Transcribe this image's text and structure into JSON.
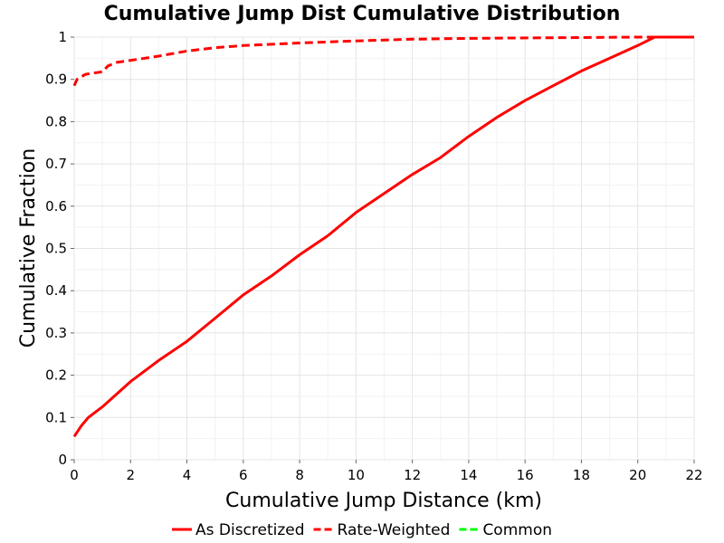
{
  "chart_data": {
    "type": "line",
    "title": "Cumulative Jump Dist Cumulative Distribution",
    "xlabel": "Cumulative Jump Distance (km)",
    "ylabel": "Cumulative Fraction",
    "xlim": [
      0,
      22
    ],
    "ylim": [
      0,
      1
    ],
    "x_ticks": [
      "0",
      "2",
      "4",
      "6",
      "8",
      "10",
      "12",
      "14",
      "16",
      "18",
      "20",
      "22"
    ],
    "y_ticks": [
      "0",
      "0.1",
      "0.2",
      "0.3",
      "0.4",
      "0.5",
      "0.6",
      "0.7",
      "0.8",
      "0.9",
      "1"
    ],
    "grid": true,
    "legend_position": "bottom",
    "series": [
      {
        "name": "As Discretized",
        "color": "#ff0000",
        "style": "solid",
        "x": [
          0,
          0.25,
          0.5,
          1.0,
          1.5,
          2.0,
          3.0,
          4.0,
          5.0,
          6.0,
          7.0,
          8.0,
          9.0,
          10.0,
          11.0,
          12.0,
          13.0,
          14.0,
          15.0,
          16.0,
          17.0,
          18.0,
          19.0,
          20.0,
          20.6,
          21.0,
          22.0
        ],
        "y": [
          0.055,
          0.08,
          0.1,
          0.125,
          0.155,
          0.185,
          0.235,
          0.28,
          0.335,
          0.39,
          0.435,
          0.485,
          0.53,
          0.585,
          0.63,
          0.675,
          0.715,
          0.765,
          0.81,
          0.85,
          0.885,
          0.92,
          0.95,
          0.98,
          1.0,
          1.0,
          1.0
        ]
      },
      {
        "name": "Rate-Weighted",
        "color": "#ff0000",
        "style": "dashed",
        "x": [
          0,
          0.1,
          0.4,
          1.0,
          1.2,
          1.5,
          2.0,
          3.0,
          4.0,
          5.0,
          6.0,
          8.0,
          10.0,
          12.0,
          14.0,
          16.0,
          18.0,
          20.0,
          22.0
        ],
        "y": [
          0.885,
          0.9,
          0.912,
          0.918,
          0.932,
          0.94,
          0.945,
          0.955,
          0.967,
          0.975,
          0.98,
          0.986,
          0.991,
          0.995,
          0.997,
          0.998,
          0.999,
          1.0,
          1.0
        ]
      },
      {
        "name": "Common",
        "color": "#00ff00",
        "style": "dashed",
        "x": [],
        "y": []
      }
    ]
  }
}
